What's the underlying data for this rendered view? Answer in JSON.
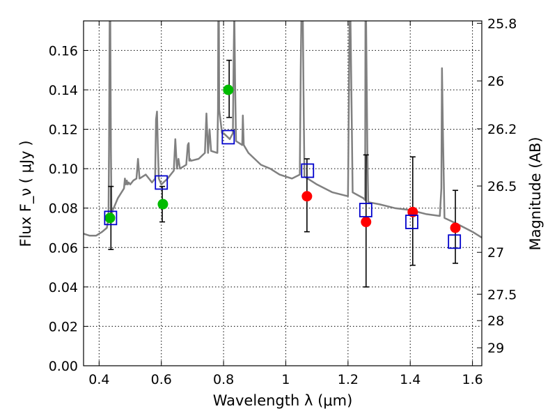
{
  "chart_data": {
    "type": "scatter",
    "title": "",
    "xlabel": "Wavelength  λ (μm)",
    "ylabel": "Flux  F_ν  ( μJy )",
    "ylabel_right": "Magnitude (AB)",
    "xlim": [
      0.35,
      1.63
    ],
    "ylim": [
      0.0,
      0.175
    ],
    "grid": true,
    "x_ticks": [
      0.4,
      0.6,
      0.8,
      1.0,
      1.2,
      1.4,
      1.6
    ],
    "x_tick_labels": [
      "0.4",
      "0.6",
      "0.8",
      "1",
      "1.2",
      "1.4",
      "1.6"
    ],
    "y_ticks": [
      0.0,
      0.02,
      0.04,
      0.06,
      0.08,
      0.1,
      0.12,
      0.14,
      0.16
    ],
    "y_tick_labels": [
      "0.00",
      "0.02",
      "0.04",
      "0.06",
      "0.08",
      "0.10",
      "0.12",
      "0.14",
      "0.16"
    ],
    "right_axis": {
      "zeropoint_ujy": 3631000000,
      "ticks": [
        25.8,
        26,
        26.2,
        26.5,
        27,
        27.5,
        28,
        29
      ],
      "tick_labels": [
        "25.8",
        "26",
        "26.2",
        "26.5",
        "27",
        "27.5",
        "28",
        "29"
      ]
    },
    "colors": {
      "model": "#808080",
      "green": "#00bb00",
      "red": "#ff0000",
      "blue": "#0000cc",
      "errorbar": "#000000"
    },
    "series": [
      {
        "name": "model spectrum",
        "kind": "line",
        "x": [
          0.35,
          0.37,
          0.39,
          0.41,
          0.425,
          0.43,
          0.432,
          0.434,
          0.436,
          0.438,
          0.44,
          0.443,
          0.447,
          0.46,
          0.48,
          0.483,
          0.486,
          0.489,
          0.492,
          0.495,
          0.5,
          0.51,
          0.52,
          0.525,
          0.53,
          0.55,
          0.57,
          0.58,
          0.583,
          0.586,
          0.589,
          0.592,
          0.6,
          0.62,
          0.64,
          0.645,
          0.65,
          0.655,
          0.66,
          0.68,
          0.685,
          0.688,
          0.69,
          0.692,
          0.695,
          0.72,
          0.74,
          0.745,
          0.75,
          0.755,
          0.76,
          0.78,
          0.782,
          0.783,
          0.784,
          0.785,
          0.786,
          0.795,
          0.8,
          0.82,
          0.83,
          0.832,
          0.834,
          0.835,
          0.837,
          0.84,
          0.86,
          0.86,
          0.862,
          0.865,
          0.88,
          0.92,
          0.95,
          0.98,
          1.0,
          1.02,
          1.045,
          1.048,
          1.05,
          1.055,
          1.057,
          1.06,
          1.08,
          1.1,
          1.15,
          1.2,
          1.203,
          1.205,
          1.208,
          1.212,
          1.215,
          1.25,
          1.255,
          1.256,
          1.258,
          1.262,
          1.265,
          1.3,
          1.35,
          1.4,
          1.45,
          1.495,
          1.5,
          1.502,
          1.505,
          1.51,
          1.55,
          1.6,
          1.63
        ],
        "y": [
          0.067,
          0.066,
          0.066,
          0.068,
          0.07,
          0.075,
          0.11,
          0.175,
          0.175,
          0.11,
          0.076,
          0.079,
          0.08,
          0.085,
          0.09,
          0.095,
          0.092,
          0.094,
          0.092,
          0.093,
          0.092,
          0.094,
          0.095,
          0.105,
          0.095,
          0.097,
          0.093,
          0.095,
          0.125,
          0.129,
          0.11,
          0.095,
          0.092,
          0.095,
          0.099,
          0.115,
          0.1,
          0.105,
          0.1,
          0.102,
          0.112,
          0.113,
          0.104,
          0.105,
          0.104,
          0.105,
          0.108,
          0.128,
          0.108,
          0.12,
          0.109,
          0.108,
          0.13,
          0.175,
          0.175,
          0.175,
          0.13,
          0.118,
          0.118,
          0.115,
          0.118,
          0.15,
          0.175,
          0.175,
          0.145,
          0.114,
          0.112,
          0.112,
          0.127,
          0.112,
          0.108,
          0.102,
          0.1,
          0.097,
          0.096,
          0.095,
          0.097,
          0.15,
          0.175,
          0.175,
          0.14,
          0.096,
          0.094,
          0.092,
          0.088,
          0.086,
          0.14,
          0.175,
          0.175,
          0.125,
          0.088,
          0.085,
          0.084,
          0.175,
          0.175,
          0.11,
          0.083,
          0.082,
          0.08,
          0.079,
          0.077,
          0.076,
          0.09,
          0.151,
          0.12,
          0.075,
          0.072,
          0.068,
          0.065
        ]
      },
      {
        "name": "green observed",
        "kind": "points",
        "marker": "circle",
        "x": [
          0.435,
          0.605,
          0.815
        ],
        "y": [
          0.075,
          0.082,
          0.14
        ]
      },
      {
        "name": "red observed",
        "kind": "points",
        "marker": "circle",
        "x": [
          1.068,
          1.258,
          1.408,
          1.545
        ],
        "y": [
          0.086,
          0.073,
          0.078,
          0.07
        ],
        "yerr_low": [
          0.068,
          0.04,
          0.051,
          0.052
        ],
        "yerr_high": [
          0.105,
          0.107,
          0.106,
          0.089
        ]
      },
      {
        "name": "blue model photometry",
        "kind": "points",
        "marker": "square-open",
        "x": [
          0.437,
          0.6,
          0.815,
          1.07,
          1.257,
          1.405,
          1.542
        ],
        "y": [
          0.075,
          0.093,
          0.116,
          0.099,
          0.079,
          0.073,
          0.063
        ]
      },
      {
        "name": "blue-band error bars",
        "kind": "errorbars",
        "x": [
          0.438,
          0.603,
          0.818
        ],
        "yerr_low": [
          0.059,
          0.073,
          0.126
        ],
        "yerr_high": [
          0.091,
          0.091,
          0.155
        ]
      }
    ]
  }
}
